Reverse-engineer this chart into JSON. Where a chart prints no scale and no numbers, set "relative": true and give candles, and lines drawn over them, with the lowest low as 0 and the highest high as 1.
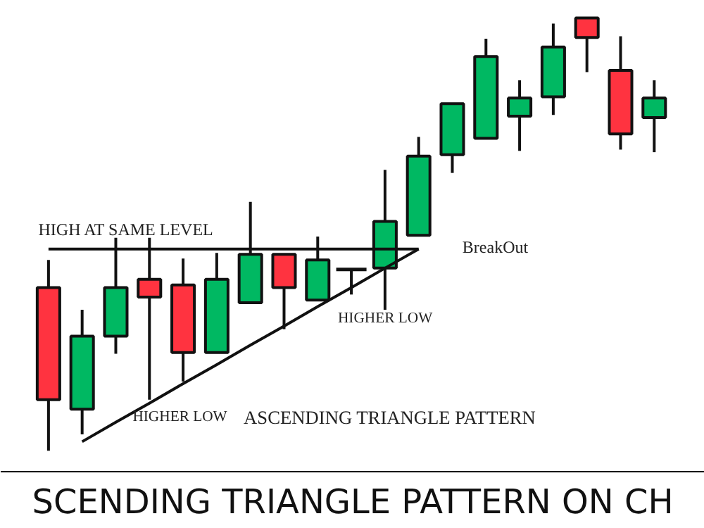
{
  "chart_data": {
    "type": "candlestick",
    "relative": true,
    "title": "SCENDING TRIANGLE PATTERN ON CH",
    "categories": [
      null,
      null,
      null,
      null,
      null,
      null,
      null,
      null,
      null,
      null,
      null,
      null,
      null,
      null,
      null,
      null,
      null,
      null,
      null
    ],
    "ohlc": [
      [
        0.377,
        0.441,
        0.0,
        0.118
      ],
      [
        0.096,
        0.326,
        0.038,
        0.265
      ],
      [
        0.265,
        0.492,
        0.224,
        0.377
      ],
      [
        0.396,
        0.492,
        0.118,
        0.355
      ],
      [
        0.383,
        0.444,
        0.16,
        0.227
      ],
      [
        0.227,
        0.457,
        0.227,
        0.396
      ],
      [
        0.342,
        0.575,
        0.342,
        0.454
      ],
      [
        0.454,
        0.454,
        0.281,
        0.377
      ],
      [
        0.348,
        0.495,
        0.348,
        0.441
      ],
      [
        0.419,
        0.419,
        0.361,
        0.419
      ],
      [
        0.422,
        0.649,
        0.326,
        0.53
      ],
      [
        0.498,
        0.725,
        0.498,
        0.681
      ],
      [
        0.684,
        0.802,
        0.642,
        0.802
      ],
      [
        0.722,
        0.952,
        0.722,
        0.911
      ],
      [
        0.773,
        0.856,
        0.693,
        0.815
      ],
      [
        0.818,
        0.987,
        0.776,
        0.933
      ],
      [
        1.0,
        1.0,
        0.875,
        0.955
      ],
      [
        0.879,
        0.958,
        0.696,
        0.732
      ],
      [
        0.77,
        0.856,
        0.69,
        0.815
      ]
    ],
    "colors": [
      "#ff3340",
      "#00b862",
      "#00b862",
      "#ff3340",
      "#ff3340",
      "#00b862",
      "#00b862",
      "#ff3340",
      "#00b862",
      "#111111",
      "#00b862",
      "#00b862",
      "#00b862",
      "#00b862",
      "#00b862",
      "#00b862",
      "#ff3340",
      "#ff3340",
      "#00b862"
    ],
    "series": [
      {
        "type": "line",
        "color": "#111111",
        "values": [
          0.466,
          0.466,
          0.466,
          0.466,
          0.466,
          0.466,
          0.466,
          0.466,
          0.466,
          0.466,
          0.466,
          0.466,
          null,
          null,
          null,
          null,
          null,
          null,
          null
        ]
      },
      {
        "type": "line",
        "color": "#111111",
        "values": [
          null,
          0.021,
          0.066,
          0.11,
          0.155,
          0.199,
          0.244,
          0.288,
          0.333,
          0.377,
          0.422,
          0.466,
          null,
          null,
          null,
          null,
          null,
          null,
          null
        ]
      }
    ],
    "annotations": [
      "HIGH AT SAME LEVEL",
      "BreakOut",
      "HIGHER LOW",
      "HIGHER LOW",
      "ASCENDING TRIANGLE PATTERN"
    ]
  }
}
